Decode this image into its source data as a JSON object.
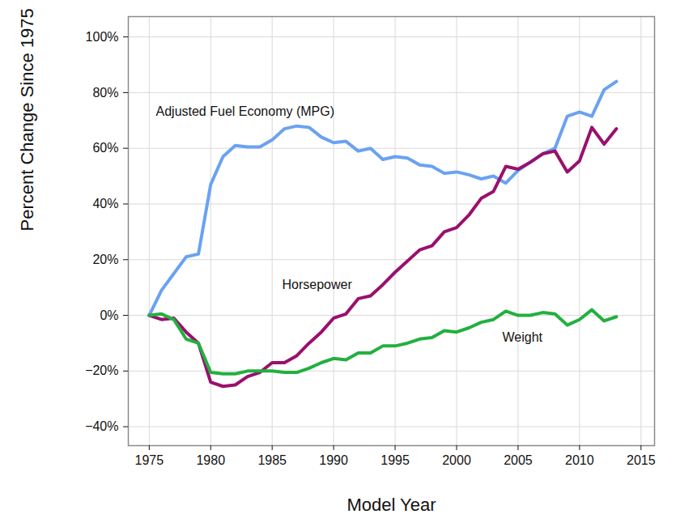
{
  "chart_data": {
    "type": "line",
    "x_label": "Model Year",
    "y_label": "Percent Change Since 1975",
    "x": [
      1975,
      1976,
      1977,
      1978,
      1979,
      1980,
      1981,
      1982,
      1983,
      1984,
      1985,
      1986,
      1987,
      1988,
      1989,
      1990,
      1991,
      1992,
      1993,
      1994,
      1995,
      1996,
      1997,
      1998,
      1999,
      2000,
      2001,
      2002,
      2003,
      2004,
      2005,
      2006,
      2007,
      2008,
      2009,
      2010,
      2011,
      2012,
      2013
    ],
    "series": [
      {
        "name": "Adjusted Fuel Economy (MPG)",
        "color": "#6aa2f2",
        "values": [
          0,
          9,
          15,
          21,
          22,
          47,
          57,
          61,
          60.5,
          60.5,
          63,
          67,
          68,
          67.5,
          64,
          62,
          62.5,
          59,
          60,
          56,
          57,
          56.5,
          54,
          53.5,
          51,
          51.5,
          50.5,
          49,
          50,
          47.5,
          52,
          55,
          58,
          60,
          71.5,
          73,
          71.5,
          81,
          84
        ]
      },
      {
        "name": "Horsepower",
        "color": "#99106e",
        "values": [
          0,
          -1.5,
          -1,
          -6,
          -10,
          -24,
          -25.5,
          -25,
          -22,
          -20.5,
          -17,
          -17,
          -14.5,
          -10,
          -6,
          -1,
          0.5,
          6,
          7,
          11,
          15.5,
          19.5,
          23.5,
          25,
          30,
          31.5,
          36,
          42,
          44.5,
          53.5,
          52.5,
          55,
          58,
          59,
          51.5,
          55.5,
          67.5,
          61.5,
          67
        ]
      },
      {
        "name": "Weight",
        "color": "#22b03f",
        "values": [
          0,
          0.5,
          -1.5,
          -8.5,
          -10,
          -20.5,
          -21,
          -21,
          -20,
          -20,
          -20,
          -20.5,
          -20.5,
          -19,
          -17,
          -15.5,
          -16,
          -13.5,
          -13.5,
          -11,
          -11,
          -10,
          -8.5,
          -8,
          -5.5,
          -6,
          -4.5,
          -2.5,
          -1.5,
          1.5,
          0,
          0,
          1,
          0.5,
          -3.5,
          -1.5,
          2,
          -2,
          -0.5
        ]
      }
    ],
    "xlim": [
      1973.3,
      2016.1
    ],
    "ylim": [
      -46.8,
      107.3
    ],
    "xticks": [
      1975,
      1980,
      1985,
      1990,
      1995,
      2000,
      2005,
      2010,
      2015
    ],
    "yticks": [
      {
        "value": -40,
        "label": "−40%"
      },
      {
        "value": -20,
        "label": "−20%"
      },
      {
        "value": 0,
        "label": "0%"
      },
      {
        "value": 20,
        "label": "20%"
      },
      {
        "value": 40,
        "label": "40%"
      },
      {
        "value": 60,
        "label": "60%"
      },
      {
        "value": 80,
        "label": "80%"
      },
      {
        "value": 100,
        "label": "100%"
      }
    ],
    "grid": true
  }
}
